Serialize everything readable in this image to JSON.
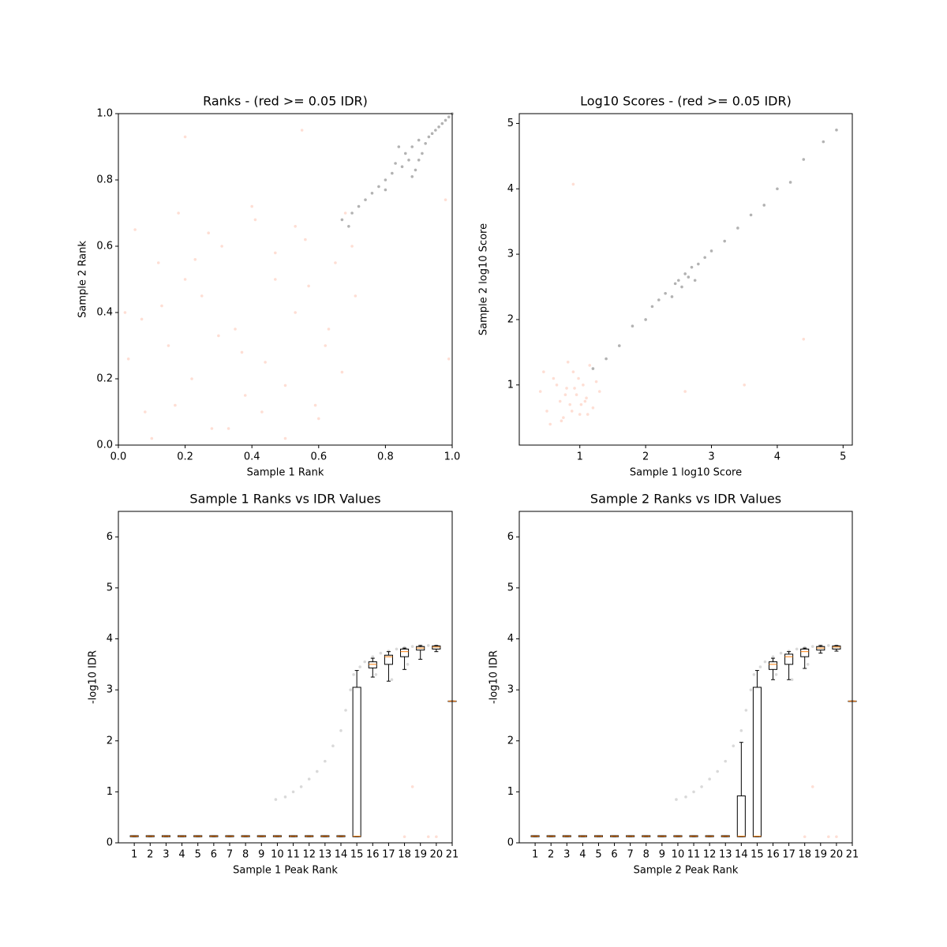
{
  "chart_data": [
    {
      "type": "scatter",
      "title": "Ranks - (red >= 0.05 IDR)",
      "xlabel": "Sample 1 Rank",
      "ylabel": "Sample 2 Rank",
      "xlim": [
        0,
        1
      ],
      "ylim": [
        0,
        1
      ],
      "xticks": [
        {
          "value": 0,
          "label": "0.0"
        },
        0.2,
        0.4,
        0.6,
        0.8,
        {
          "value": 1,
          "label": "1.0"
        }
      ],
      "yticks": [
        {
          "value": 0,
          "label": "0.0"
        },
        0.2,
        0.4,
        0.6,
        0.8,
        {
          "value": 1,
          "label": "1.0"
        }
      ],
      "series": [
        {
          "color": "#fc9272",
          "x": [
            0.02,
            0.05,
            0.08,
            0.12,
            0.15,
            0.18,
            0.22,
            0.25,
            0.28,
            0.31,
            0.35,
            0.38,
            0.41,
            0.44,
            0.47,
            0.5,
            0.53,
            0.56,
            0.59,
            0.62,
            0.65,
            0.68,
            0.71,
            0.03,
            0.1,
            0.2,
            0.3,
            0.4,
            0.5,
            0.6,
            0.7,
            0.07,
            0.17,
            0.27,
            0.37,
            0.47,
            0.57,
            0.67,
            0.13,
            0.33,
            0.53,
            0.23,
            0.43,
            0.63,
            0.2,
            0.98,
            0.55,
            0.99
          ],
          "values": [
            0.4,
            0.65,
            0.1,
            0.55,
            0.3,
            0.7,
            0.2,
            0.45,
            0.05,
            0.6,
            0.35,
            0.15,
            0.68,
            0.25,
            0.5,
            0.02,
            0.4,
            0.62,
            0.12,
            0.3,
            0.55,
            0.7,
            0.45,
            0.26,
            0.02,
            0.5,
            0.33,
            0.72,
            0.18,
            0.08,
            0.6,
            0.38,
            0.12,
            0.64,
            0.28,
            0.58,
            0.48,
            0.22,
            0.42,
            0.05,
            0.66,
            0.56,
            0.1,
            0.35,
            0.93,
            0.74,
            0.95,
            0.26
          ]
        },
        {
          "color": "#000000",
          "x": [
            0.67,
            0.69,
            0.7,
            0.72,
            0.74,
            0.76,
            0.78,
            0.8,
            0.8,
            0.82,
            0.83,
            0.85,
            0.86,
            0.87,
            0.88,
            0.89,
            0.9,
            0.91,
            0.92,
            0.93,
            0.94,
            0.95,
            0.96,
            0.97,
            0.98,
            0.99,
            1.0,
            0.84,
            0.88,
            0.9
          ],
          "values": [
            0.68,
            0.66,
            0.7,
            0.72,
            0.74,
            0.76,
            0.78,
            0.77,
            0.8,
            0.82,
            0.85,
            0.84,
            0.88,
            0.86,
            0.9,
            0.83,
            0.92,
            0.88,
            0.91,
            0.93,
            0.94,
            0.95,
            0.96,
            0.97,
            0.98,
            0.99,
            1.0,
            0.9,
            0.81,
            0.86
          ]
        }
      ]
    },
    {
      "type": "scatter",
      "title": "Log10 Scores - (red >= 0.05 IDR)",
      "xlabel": "Sample 1 log10 Score",
      "ylabel": "Sample 2 log10 Score",
      "xlim": [
        0.08,
        5.14
      ],
      "ylim": [
        0.08,
        5.15
      ],
      "xticks": [
        1,
        2,
        3,
        4,
        5
      ],
      "yticks": [
        1,
        2,
        3,
        4,
        5
      ],
      "series": [
        {
          "color": "#fc9272",
          "x": [
            0.4,
            0.5,
            0.6,
            0.7,
            0.75,
            0.8,
            0.85,
            0.9,
            0.95,
            1.0,
            1.05,
            1.1,
            1.15,
            1.2,
            1.3,
            0.55,
            0.65,
            0.78,
            0.88,
            0.98,
            1.08,
            1.25,
            0.45,
            0.72,
            0.92,
            1.12,
            0.82,
            1.02,
            2.6,
            3.5,
            4.4,
            0.9
          ],
          "values": [
            0.9,
            0.6,
            1.1,
            0.75,
            0.5,
            0.95,
            0.7,
            1.2,
            0.85,
            0.55,
            1.0,
            0.8,
            1.3,
            0.65,
            0.9,
            0.4,
            1.0,
            0.85,
            0.6,
            1.1,
            0.75,
            1.05,
            1.2,
            0.45,
            0.95,
            0.55,
            1.35,
            0.7,
            0.9,
            1.0,
            1.7,
            4.07
          ]
        },
        {
          "color": "#000000",
          "x": [
            1.2,
            1.4,
            1.6,
            1.8,
            2.0,
            2.1,
            2.2,
            2.3,
            2.4,
            2.45,
            2.5,
            2.55,
            2.6,
            2.65,
            2.7,
            2.75,
            2.8,
            2.9,
            3.0,
            3.2,
            3.4,
            3.6,
            3.8,
            4.0,
            4.2,
            4.4,
            4.7,
            4.9
          ],
          "values": [
            1.25,
            1.4,
            1.6,
            1.9,
            2.0,
            2.2,
            2.3,
            2.4,
            2.35,
            2.55,
            2.6,
            2.5,
            2.7,
            2.65,
            2.8,
            2.6,
            2.85,
            2.95,
            3.05,
            3.2,
            3.4,
            3.6,
            3.75,
            4.0,
            4.1,
            4.45,
            4.72,
            4.9
          ]
        }
      ]
    },
    {
      "type": "box",
      "title": "Sample 1 Ranks vs IDR Values",
      "xlabel": "Sample 1 Peak Rank",
      "ylabel": "-log10 IDR",
      "xlim": [
        0,
        21
      ],
      "ylim": [
        0,
        6.5
      ],
      "xticks": [
        1,
        2,
        3,
        4,
        5,
        6,
        7,
        8,
        9,
        10,
        11,
        12,
        13,
        14,
        15,
        16,
        17,
        18,
        19,
        20,
        21
      ],
      "yticks": [
        0,
        1,
        2,
        3,
        4,
        5,
        6
      ],
      "box_color": "#000000",
      "median_color": "#ff7f0e",
      "positions": [
        1,
        2,
        3,
        4,
        5,
        6,
        7,
        8,
        9,
        10,
        11,
        12,
        13,
        14,
        15,
        16,
        17,
        18,
        19,
        20,
        21
      ],
      "whislo": [
        0.12,
        0.12,
        0.12,
        0.12,
        0.12,
        0.12,
        0.12,
        0.12,
        0.12,
        0.12,
        0.12,
        0.12,
        0.12,
        0.12,
        0.12,
        3.25,
        3.17,
        3.4,
        3.6,
        3.75,
        2.78
      ],
      "q1": [
        0.12,
        0.12,
        0.12,
        0.12,
        0.12,
        0.12,
        0.12,
        0.12,
        0.12,
        0.12,
        0.12,
        0.12,
        0.12,
        0.12,
        0.12,
        3.43,
        3.5,
        3.65,
        3.78,
        3.8,
        2.78
      ],
      "med": [
        0.13,
        0.13,
        0.13,
        0.13,
        0.13,
        0.13,
        0.13,
        0.13,
        0.13,
        0.13,
        0.13,
        0.13,
        0.13,
        0.13,
        0.13,
        3.5,
        3.65,
        3.75,
        3.82,
        3.84,
        2.78
      ],
      "q3": [
        0.14,
        0.14,
        0.14,
        0.14,
        0.14,
        0.14,
        0.14,
        0.14,
        0.14,
        0.14,
        0.14,
        0.14,
        0.14,
        0.14,
        3.05,
        3.55,
        3.68,
        3.8,
        3.85,
        3.86,
        2.78
      ],
      "whishi": [
        0.14,
        0.14,
        0.14,
        0.14,
        0.14,
        0.14,
        0.14,
        0.14,
        0.14,
        0.14,
        0.14,
        0.14,
        0.14,
        0.14,
        3.38,
        3.62,
        3.75,
        3.82,
        3.87,
        3.87,
        2.78
      ],
      "series": [
        {
          "color": "#808080",
          "x": [
            9.9,
            10.5,
            11,
            11.5,
            12,
            12.5,
            13,
            13.5,
            14,
            14.3,
            14.6,
            14.8,
            15.2,
            15.5,
            16,
            16.5,
            17,
            17.5,
            18,
            18.5,
            19,
            19.5,
            20,
            16.2,
            17.2,
            18.2
          ],
          "values": [
            0.85,
            0.9,
            1.0,
            1.1,
            1.25,
            1.4,
            1.6,
            1.9,
            2.2,
            2.6,
            3.0,
            3.3,
            3.45,
            3.55,
            3.65,
            3.72,
            3.76,
            3.8,
            3.83,
            3.85,
            3.86,
            3.87,
            3.86,
            3.3,
            3.2,
            3.5
          ]
        },
        {
          "color": "#fc9272",
          "x": [
            18,
            18.5,
            19.5,
            20
          ],
          "values": [
            0.12,
            1.1,
            0.12,
            0.12
          ]
        }
      ]
    },
    {
      "type": "box",
      "title": "Sample 2 Ranks vs IDR Values",
      "xlabel": "Sample 2 Peak Rank",
      "ylabel": "-log10 IDR",
      "xlim": [
        0,
        21
      ],
      "ylim": [
        0,
        6.5
      ],
      "xticks": [
        1,
        2,
        3,
        4,
        5,
        6,
        7,
        8,
        9,
        10,
        11,
        12,
        13,
        14,
        15,
        16,
        17,
        18,
        19,
        20,
        21
      ],
      "yticks": [
        0,
        1,
        2,
        3,
        4,
        5,
        6
      ],
      "box_color": "#000000",
      "median_color": "#ff7f0e",
      "positions": [
        1,
        2,
        3,
        4,
        5,
        6,
        7,
        8,
        9,
        10,
        11,
        12,
        13,
        14,
        15,
        16,
        17,
        18,
        19,
        20,
        21
      ],
      "whislo": [
        0.12,
        0.12,
        0.12,
        0.12,
        0.12,
        0.12,
        0.12,
        0.12,
        0.12,
        0.12,
        0.12,
        0.12,
        0.12,
        0.12,
        0.12,
        3.2,
        3.2,
        3.42,
        3.72,
        3.76,
        2.78
      ],
      "q1": [
        0.12,
        0.12,
        0.12,
        0.12,
        0.12,
        0.12,
        0.12,
        0.12,
        0.12,
        0.12,
        0.12,
        0.12,
        0.12,
        0.12,
        0.12,
        3.4,
        3.5,
        3.65,
        3.78,
        3.8,
        2.78
      ],
      "med": [
        0.13,
        0.13,
        0.13,
        0.13,
        0.13,
        0.13,
        0.13,
        0.13,
        0.13,
        0.13,
        0.13,
        0.13,
        0.13,
        0.13,
        0.13,
        3.5,
        3.65,
        3.75,
        3.82,
        3.84,
        2.78
      ],
      "q3": [
        0.14,
        0.14,
        0.14,
        0.14,
        0.14,
        0.14,
        0.14,
        0.14,
        0.14,
        0.14,
        0.14,
        0.14,
        0.14,
        0.92,
        3.05,
        3.55,
        3.7,
        3.8,
        3.85,
        3.86,
        2.78
      ],
      "whishi": [
        0.14,
        0.14,
        0.14,
        0.14,
        0.14,
        0.14,
        0.14,
        0.14,
        0.14,
        0.14,
        0.14,
        0.14,
        0.14,
        1.97,
        3.38,
        3.62,
        3.75,
        3.82,
        3.87,
        3.87,
        2.78
      ],
      "series": [
        {
          "color": "#808080",
          "x": [
            9.9,
            10.5,
            11,
            11.5,
            12,
            12.5,
            13,
            13.5,
            14,
            14.3,
            14.6,
            14.8,
            15.2,
            15.5,
            16,
            16.5,
            17,
            17.5,
            18,
            18.5,
            19,
            19.5,
            20,
            16.2,
            17.2,
            18.2
          ],
          "values": [
            0.85,
            0.9,
            1.0,
            1.1,
            1.25,
            1.4,
            1.6,
            1.9,
            2.2,
            2.6,
            3.0,
            3.3,
            3.45,
            3.55,
            3.65,
            3.72,
            3.76,
            3.8,
            3.83,
            3.85,
            3.86,
            3.87,
            3.86,
            3.3,
            3.2,
            3.5
          ]
        },
        {
          "color": "#fc9272",
          "x": [
            18,
            18.5,
            19.5,
            20
          ],
          "values": [
            0.12,
            1.1,
            0.12,
            0.12
          ]
        }
      ]
    }
  ]
}
